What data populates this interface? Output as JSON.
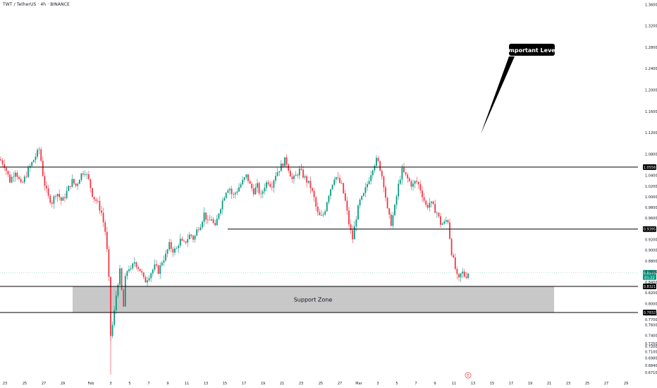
{
  "header": {
    "symbol": "TWT / TetherUS · 4h · BINANCE"
  },
  "colors": {
    "up": "#089981",
    "down": "#f23645",
    "level": "#000000",
    "zone_fill": "#c8c8c8",
    "current_price_tag": "#089981"
  },
  "chart_data": {
    "type": "candlestick",
    "title": "",
    "y_axis": {
      "ylim": [
        0.667,
        1.3645
      ],
      "ticks": [
        "1.3600",
        "1.3200",
        "1.2800",
        "1.2400",
        "1.2000",
        "1.1600",
        "1.1200",
        "1.0800",
        "1.0400",
        "1.0000",
        "0.9600",
        "0.9200",
        "0.8800",
        "0.8400",
        "0.8200",
        "0.8000",
        "0.7800",
        "0.7600",
        "0.7400",
        "0.7200",
        "0.7100",
        "0.6980",
        "0.6840",
        "0.6710"
      ],
      "tick_values": [
        1.36,
        1.32,
        1.28,
        1.24,
        1.2,
        1.16,
        1.12,
        1.08,
        1.04,
        1.0,
        0.96,
        0.92,
        0.88,
        0.84,
        0.82,
        0.8,
        0.78,
        0.76,
        0.74,
        0.72,
        0.71,
        0.698,
        0.684,
        0.671
      ],
      "extra_ticks": [
        "1.0200",
        "0.9800",
        "0.9000",
        "0.8600",
        "0.7700",
        "0.7250"
      ],
      "extra_tick_values": [
        1.02,
        0.98,
        0.9,
        0.86,
        0.77,
        0.725
      ]
    },
    "x_axis": {
      "labels": [
        "23",
        "25",
        "27",
        "29",
        "Feb",
        "3",
        "5",
        "7",
        "9",
        "11",
        "13",
        "15",
        "17",
        "19",
        "21",
        "23",
        "25",
        "27",
        "Mar",
        "3",
        "5",
        "7",
        "9",
        "11",
        "13",
        "15",
        "17",
        "19",
        "21",
        "23",
        "25",
        "27",
        "29"
      ]
    },
    "levels": [
      {
        "name": "Important Level",
        "price": 1.0556,
        "label": "1.0556"
      },
      {
        "name": "mid-level",
        "price": 0.9395,
        "label": "0.9395"
      },
      {
        "name": "support-top",
        "price": 0.8321,
        "label": "0.8321"
      },
      {
        "name": "support-bottom",
        "price": 0.7832,
        "label": "0.7832"
      }
    ],
    "current_price": {
      "price": 0.8575,
      "label": "0.8575",
      "countdown": "01:22"
    },
    "support_zone": {
      "label": "Support Zone",
      "top": 0.8321,
      "bottom": 0.7832
    },
    "annotation": {
      "text": "Important Level"
    },
    "event_marker": "E",
    "close_path": [
      [
        0,
        1.07
      ],
      [
        6,
        1.06
      ],
      [
        14,
        1.03
      ],
      [
        22,
        1.05
      ],
      [
        30,
        1.02
      ],
      [
        40,
        1.05
      ],
      [
        48,
        1.07
      ],
      [
        56,
        1.09
      ],
      [
        62,
        1.03
      ],
      [
        68,
        1.0
      ],
      [
        74,
        0.99
      ],
      [
        80,
        1.01
      ],
      [
        88,
        0.99
      ],
      [
        95,
        1.01
      ],
      [
        102,
        1.03
      ],
      [
        108,
        1.02
      ],
      [
        114,
        1.04
      ],
      [
        120,
        1.05
      ],
      [
        126,
        1.03
      ],
      [
        132,
        1.0
      ],
      [
        138,
        0.99
      ],
      [
        144,
        0.97
      ],
      [
        150,
        0.93
      ],
      [
        154,
        0.86
      ],
      [
        157,
        0.74
      ],
      [
        161,
        0.77
      ],
      [
        166,
        0.83
      ],
      [
        170,
        0.86
      ],
      [
        175,
        0.79
      ],
      [
        178,
        0.85
      ],
      [
        182,
        0.87
      ],
      [
        186,
        0.86
      ],
      [
        190,
        0.88
      ],
      [
        195,
        0.87
      ],
      [
        200,
        0.86
      ],
      [
        205,
        0.84
      ],
      [
        210,
        0.85
      ],
      [
        215,
        0.86
      ],
      [
        220,
        0.87
      ],
      [
        225,
        0.86
      ],
      [
        230,
        0.88
      ],
      [
        235,
        0.89
      ],
      [
        240,
        0.91
      ],
      [
        245,
        0.9
      ],
      [
        250,
        0.9
      ],
      [
        255,
        0.92
      ],
      [
        260,
        0.91
      ],
      [
        265,
        0.92
      ],
      [
        270,
        0.93
      ],
      [
        275,
        0.92
      ],
      [
        280,
        0.94
      ],
      [
        285,
        0.95
      ],
      [
        290,
        0.97
      ],
      [
        295,
        0.95
      ],
      [
        300,
        0.96
      ],
      [
        305,
        0.94
      ],
      [
        310,
        0.97
      ],
      [
        315,
        0.99
      ],
      [
        320,
        1.01
      ],
      [
        325,
        1.02
      ],
      [
        330,
        1.0
      ],
      [
        335,
        1.01
      ],
      [
        340,
        1.02
      ],
      [
        345,
        1.03
      ],
      [
        350,
        1.04
      ],
      [
        355,
        1.02
      ],
      [
        360,
        1.01
      ],
      [
        365,
        1.02
      ],
      [
        370,
        1.0
      ],
      [
        375,
        1.02
      ],
      [
        380,
        1.03
      ],
      [
        385,
        1.02
      ],
      [
        390,
        1.04
      ],
      [
        395,
        1.05
      ],
      [
        400,
        1.06
      ],
      [
        405,
        1.07
      ],
      [
        410,
        1.05
      ],
      [
        415,
        1.03
      ],
      [
        420,
        1.04
      ],
      [
        425,
        1.05
      ],
      [
        430,
        1.04
      ],
      [
        435,
        1.03
      ],
      [
        440,
        1.02
      ],
      [
        445,
        1.0
      ],
      [
        450,
        0.97
      ],
      [
        455,
        0.96
      ],
      [
        460,
        0.97
      ],
      [
        465,
        1.0
      ],
      [
        470,
        1.02
      ],
      [
        475,
        1.04
      ],
      [
        480,
        1.03
      ],
      [
        485,
        1.02
      ],
      [
        490,
        0.99
      ],
      [
        495,
        0.95
      ],
      [
        500,
        0.92
      ],
      [
        505,
        0.96
      ],
      [
        510,
        0.99
      ],
      [
        515,
        1.0
      ],
      [
        520,
        1.02
      ],
      [
        525,
        1.04
      ],
      [
        530,
        1.06
      ],
      [
        535,
        1.07
      ],
      [
        540,
        1.05
      ],
      [
        545,
        1.02
      ],
      [
        550,
        0.97
      ],
      [
        555,
        0.95
      ],
      [
        560,
        0.98
      ],
      [
        565,
        1.02
      ],
      [
        570,
        1.05
      ],
      [
        575,
        1.04
      ],
      [
        580,
        1.03
      ],
      [
        585,
        1.02
      ],
      [
        590,
        1.03
      ],
      [
        595,
        1.02
      ],
      [
        600,
        1.0
      ],
      [
        605,
        0.98
      ],
      [
        610,
        0.99
      ],
      [
        615,
        0.98
      ],
      [
        620,
        0.97
      ],
      [
        625,
        0.95
      ],
      [
        630,
        0.95
      ],
      [
        635,
        0.96
      ],
      [
        640,
        0.9
      ],
      [
        645,
        0.87
      ],
      [
        650,
        0.84
      ],
      [
        655,
        0.86
      ],
      [
        660,
        0.85
      ],
      [
        665,
        0.86
      ]
    ]
  }
}
